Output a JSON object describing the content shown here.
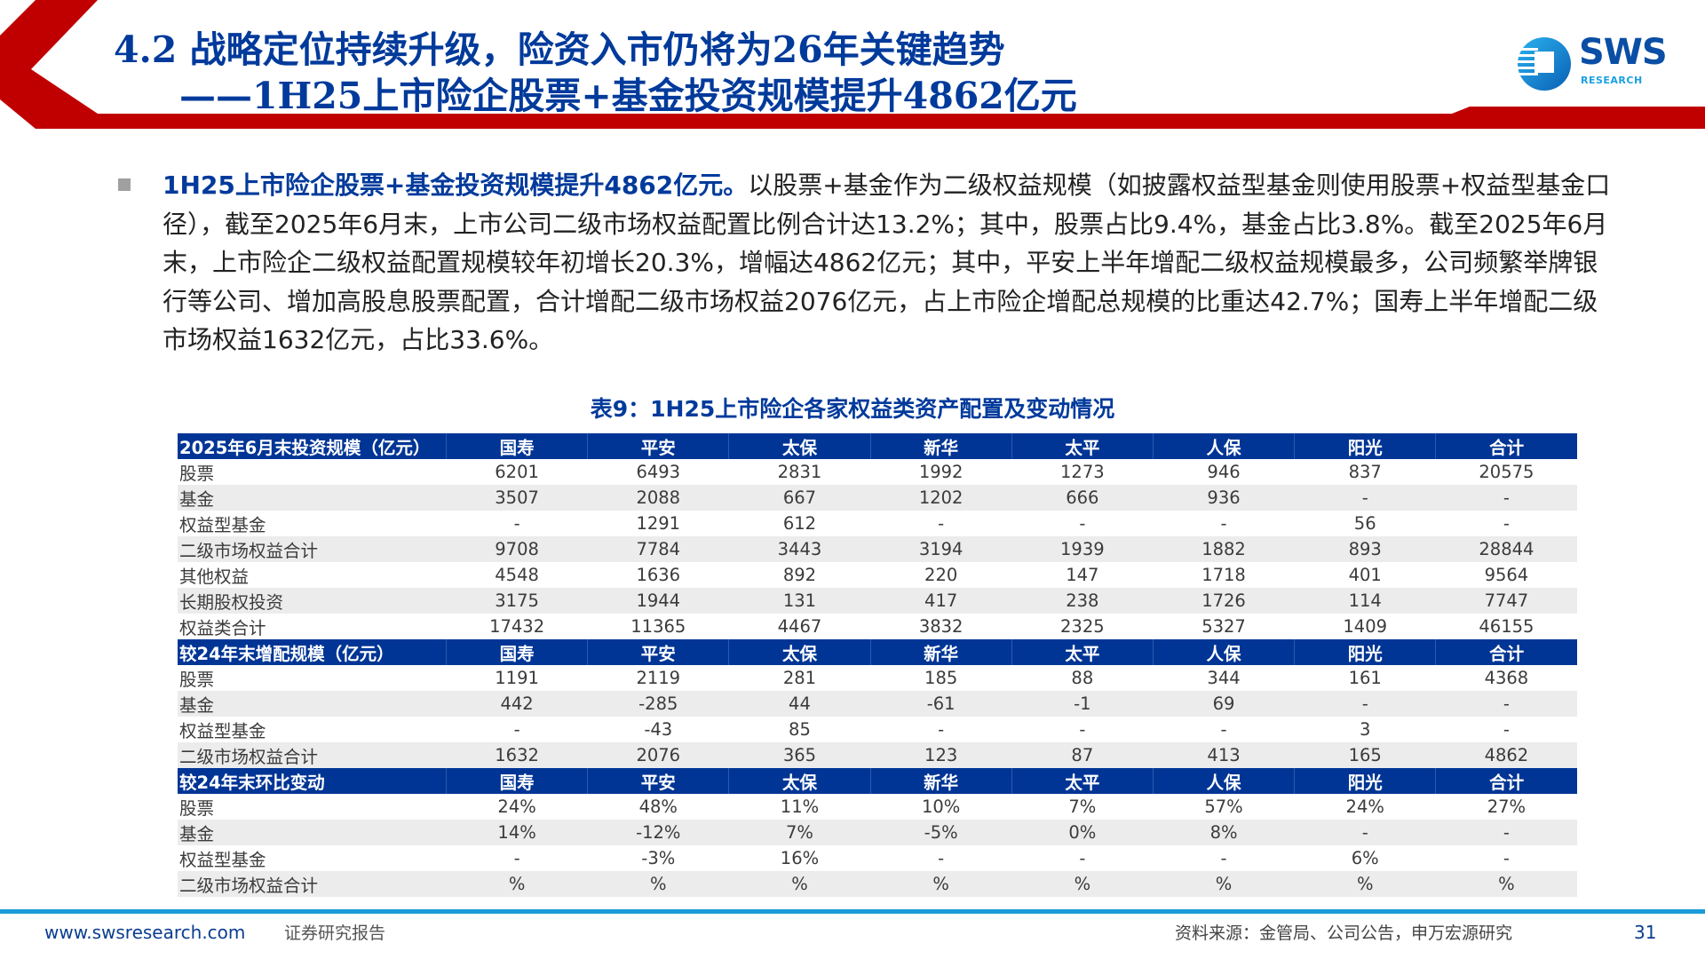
{
  "header": {
    "title_line1": "4.2 战略定位持续升级，险资入市仍将为26年关键趋势",
    "title_line2": "——1H25上市险企股票+基金投资规模提升4862亿元",
    "logo": {
      "name": "SWS",
      "sub": "RESEARCH"
    },
    "colors": {
      "red": "#c00000",
      "blue": "#003a9b"
    }
  },
  "body": {
    "bullet_icon": "square-bullet",
    "lead": "1H25上市险企股票+基金投资规模提升4862亿元。",
    "text": "以股票+基金作为二级权益规模（如披露权益型基金则使用股票+权益型基金口径），截至2025年6月末，上市公司二级市场权益配置比例合计达13.2%；其中，股票占比9.4%，基金占比3.8%。截至2025年6月末，上市险企二级权益配置规模较年初增长20.3%，增幅达4862亿元；其中，平安上半年增配二级权益规模最多，公司频繁举牌银行等公司、增加高股息股票配置，合计增配二级市场权益2076亿元，占上市险企增配总规模的比重达42.7%；国寿上半年增配二级市场权益1632亿元，占比33.6%。"
  },
  "table": {
    "title": "表9：1H25上市险企各家权益类资产配置及变动情况",
    "sections": [
      {
        "header": [
          "2025年6月末投资规模（亿元）",
          "国寿",
          "平安",
          "太保",
          "新华",
          "太平",
          "人保",
          "阳光",
          "合计"
        ],
        "rows": [
          [
            "股票",
            "6201",
            "6493",
            "2831",
            "1992",
            "1273",
            "946",
            "837",
            "20575"
          ],
          [
            "基金",
            "3507",
            "2088",
            "667",
            "1202",
            "666",
            "936",
            "-",
            "-"
          ],
          [
            "权益型基金",
            "-",
            "1291",
            "612",
            "-",
            "-",
            "-",
            "56",
            "-"
          ],
          [
            "二级市场权益合计",
            "9708",
            "7784",
            "3443",
            "3194",
            "1939",
            "1882",
            "893",
            "28844"
          ],
          [
            "其他权益",
            "4548",
            "1636",
            "892",
            "220",
            "147",
            "1718",
            "401",
            "9564"
          ],
          [
            "长期股权投资",
            "3175",
            "1944",
            "131",
            "417",
            "238",
            "1726",
            "114",
            "7747"
          ],
          [
            "权益类合计",
            "17432",
            "11365",
            "4467",
            "3832",
            "2325",
            "5327",
            "1409",
            "46155"
          ]
        ]
      },
      {
        "header": [
          "较24年末增配规模（亿元）",
          "国寿",
          "平安",
          "太保",
          "新华",
          "太平",
          "人保",
          "阳光",
          "合计"
        ],
        "rows": [
          [
            "股票",
            "1191",
            "2119",
            "281",
            "185",
            "88",
            "344",
            "161",
            "4368"
          ],
          [
            "基金",
            "442",
            "-285",
            "44",
            "-61",
            "-1",
            "69",
            "-",
            "-"
          ],
          [
            "权益型基金",
            "-",
            "-43",
            "85",
            "-",
            "-",
            "-",
            "3",
            "-"
          ],
          [
            "二级市场权益合计",
            "1632",
            "2076",
            "365",
            "123",
            "87",
            "413",
            "165",
            "4862"
          ]
        ]
      },
      {
        "header": [
          "较24年末环比变动",
          "国寿",
          "平安",
          "太保",
          "新华",
          "太平",
          "人保",
          "阳光",
          "合计"
        ],
        "rows": [
          [
            "股票",
            "24%",
            "48%",
            "11%",
            "10%",
            "7%",
            "57%",
            "24%",
            "27%"
          ],
          [
            "基金",
            "14%",
            "-12%",
            "7%",
            "-5%",
            "0%",
            "8%",
            "-",
            "-"
          ],
          [
            "权益型基金",
            "-",
            "-3%",
            "16%",
            "-",
            "-",
            "-",
            "6%",
            "-"
          ],
          [
            "二级市场权益合计",
            "%",
            "%",
            "%",
            "%",
            "%",
            "%",
            "%",
            "%"
          ]
        ]
      }
    ]
  },
  "footer": {
    "url": "www.swsresearch.com",
    "doc_type": "证券研究报告",
    "source": "资料来源：金管局、公司公告，申万宏源研究",
    "page": "31"
  }
}
